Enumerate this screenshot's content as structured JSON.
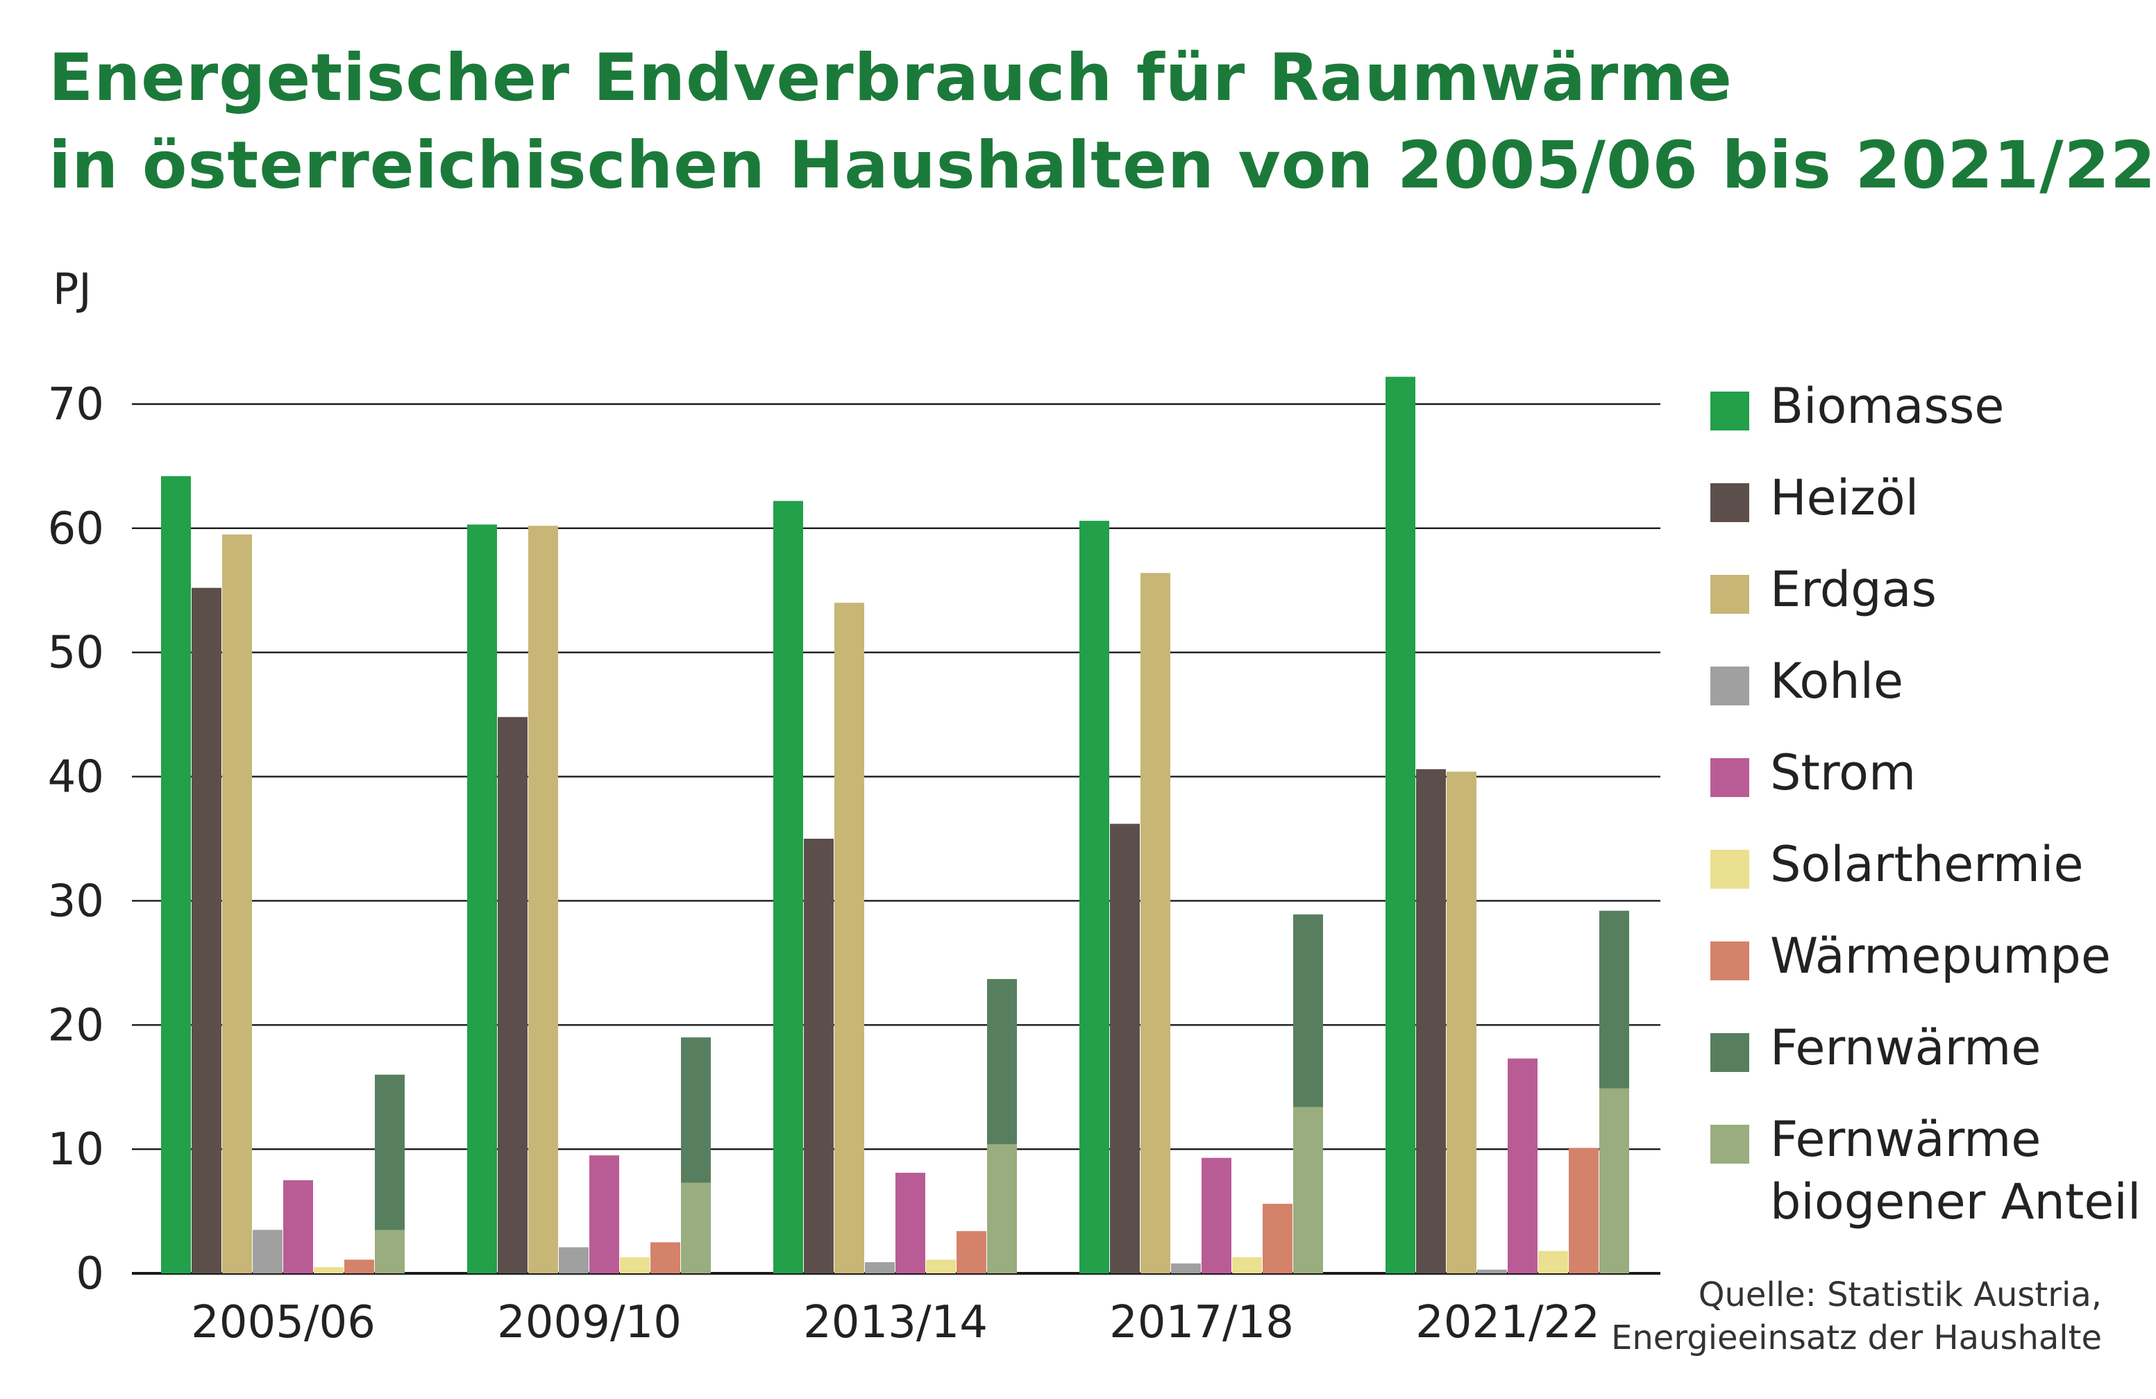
{
  "title": {
    "line1": "Energetischer Endverbrauch für Raumwärme",
    "line2": "in österreichischen Haushalten von 2005/06 bis 2021/22"
  },
  "unit_label": "PJ",
  "source": {
    "line1": "Quelle: Statistik Austria,",
    "line2": "Energieeinsatz der Haushalte"
  },
  "colors": {
    "Biomasse": "#22a04a",
    "Heizöl": "#5c4f4b",
    "Erdgas": "#c8b677",
    "Kohle": "#a0a0a0",
    "Strom": "#b95c95",
    "Solarthermie": "#ebe08f",
    "Wärmepumpe": "#d5826a",
    "Fernwärme": "#577f5f",
    "Fernwärme biogener Anteil": "#99ad7e"
  },
  "chart_data": {
    "type": "bar",
    "unit": "PJ",
    "categories": [
      "2005/06",
      "2009/10",
      "2013/14",
      "2017/18",
      "2021/22"
    ],
    "ylim": [
      0,
      70
    ],
    "yticks": [
      0,
      10,
      20,
      30,
      40,
      50,
      60,
      70
    ],
    "grid": true,
    "legend_position": "right",
    "series": [
      {
        "name": "Biomasse",
        "values": [
          64.2,
          60.3,
          62.2,
          60.6,
          72.2
        ]
      },
      {
        "name": "Heizöl",
        "values": [
          55.2,
          44.8,
          35.0,
          36.2,
          40.6
        ]
      },
      {
        "name": "Erdgas",
        "values": [
          59.5,
          60.2,
          54.0,
          56.4,
          40.4
        ]
      },
      {
        "name": "Kohle",
        "values": [
          3.5,
          2.1,
          0.9,
          0.8,
          0.3
        ]
      },
      {
        "name": "Strom",
        "values": [
          7.5,
          9.5,
          8.1,
          9.3,
          17.3
        ]
      },
      {
        "name": "Solarthermie",
        "values": [
          0.5,
          1.3,
          1.1,
          1.3,
          1.8
        ]
      },
      {
        "name": "Wärmepumpe",
        "values": [
          1.1,
          2.5,
          3.4,
          5.6,
          10.1
        ]
      },
      {
        "name": "Fernwärme",
        "values": [
          16.0,
          19.0,
          23.7,
          28.9,
          29.2
        ]
      },
      {
        "name": "Fernwärme biogener Anteil",
        "values": [
          3.5,
          7.3,
          10.4,
          13.4,
          14.9
        ]
      }
    ],
    "legend": [
      {
        "label": "Biomasse",
        "color": "#22a04a"
      },
      {
        "label": "Heizöl",
        "color": "#5c4f4b"
      },
      {
        "label": "Erdgas",
        "color": "#c8b677"
      },
      {
        "label": "Kohle",
        "color": "#a0a0a0"
      },
      {
        "label": "Strom",
        "color": "#b95c95"
      },
      {
        "label": "Solarthermie",
        "color": "#ebe08f"
      },
      {
        "label": "Wärmepumpe",
        "color": "#d5826a"
      },
      {
        "label": "Fernwärme",
        "color": "#577f5f"
      },
      {
        "label": "Fernwärme\nbiogener Anteil",
        "color": "#99ad7e"
      }
    ]
  }
}
